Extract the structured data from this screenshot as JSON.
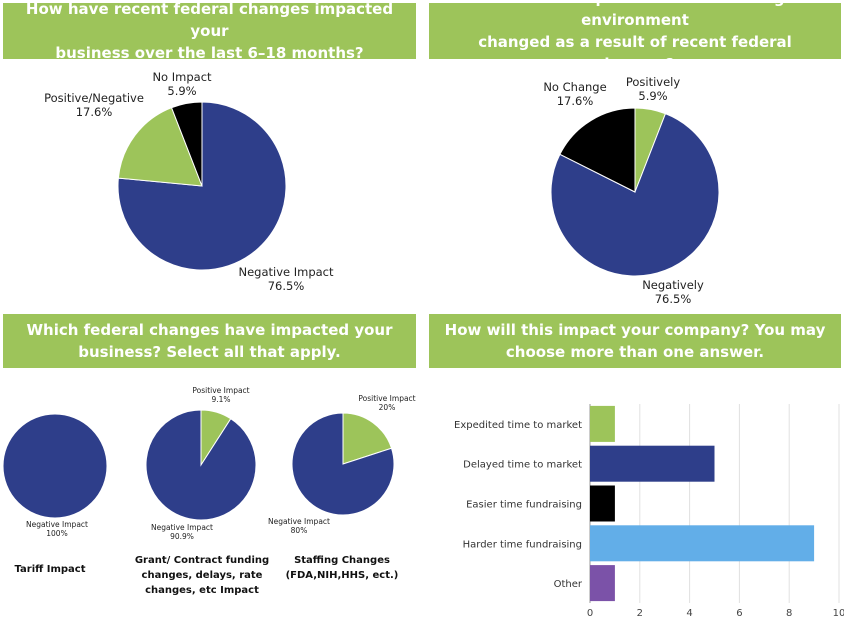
{
  "colors": {
    "banner_bg": "#9dc45a",
    "navy": "#2e3e8a",
    "green": "#9dc45a",
    "black": "#000000",
    "light_blue": "#62aee8",
    "purple": "#7b52a8"
  },
  "panels": {
    "top_left_title": [
      "How have recent federal changes impacted your",
      "business over the last 6–18 months?"
    ],
    "top_right_title": [
      "How has the private sector funding environment",
      "changed as a result of recent federal changes?"
    ],
    "bottom_left_title": [
      "Which federal changes have impacted your",
      "business? Select all that apply."
    ],
    "bottom_right_title": [
      "How will this impact your company? You may",
      "choose more than one answer."
    ]
  },
  "captions": {
    "tariff": [
      "Tariff Impact"
    ],
    "grant": [
      "Grant/ Contract funding",
      "changes, delays, rate",
      "changes, etc Impact"
    ],
    "staffing": [
      "Staffing Changes",
      "(FDA,NIH,HHS, ect.)"
    ]
  },
  "chart_data": [
    {
      "id": "business-impact",
      "type": "pie",
      "slices": [
        {
          "label": "Negative Impact",
          "value": 76.5,
          "display": "76.5%",
          "color": "#2e3e8a"
        },
        {
          "label": "Positive/Negative",
          "value": 17.6,
          "display": "17.6%",
          "color": "#9dc45a"
        },
        {
          "label": "No Impact",
          "value": 5.9,
          "display": "5.9%",
          "color": "#000000"
        }
      ]
    },
    {
      "id": "funding-environment",
      "type": "pie",
      "slices": [
        {
          "label": "Positively",
          "value": 5.9,
          "display": "5.9%",
          "color": "#9dc45a"
        },
        {
          "label": "Negatively",
          "value": 76.5,
          "display": "76.5%",
          "color": "#2e3e8a"
        },
        {
          "label": "No Change",
          "value": 17.6,
          "display": "17.6%",
          "color": "#000000"
        }
      ]
    },
    {
      "id": "tariff-impact",
      "type": "pie",
      "slices": [
        {
          "label": "Negative Impact",
          "value": 100,
          "display": "100%",
          "color": "#2e3e8a"
        }
      ]
    },
    {
      "id": "grant-impact",
      "type": "pie",
      "slices": [
        {
          "label": "Positive Impact",
          "value": 9.1,
          "display": "9.1%",
          "color": "#9dc45a"
        },
        {
          "label": "Negative Impact",
          "value": 90.9,
          "display": "90.9%",
          "color": "#2e3e8a"
        }
      ]
    },
    {
      "id": "staffing-impact",
      "type": "pie",
      "slices": [
        {
          "label": "Positive Impact",
          "value": 20,
          "display": "20%",
          "color": "#9dc45a"
        },
        {
          "label": "Negative Impact",
          "value": 80,
          "display": "80%",
          "color": "#2e3e8a"
        }
      ]
    },
    {
      "id": "company-impact",
      "type": "bar",
      "orientation": "horizontal",
      "categories": [
        "Expedited time to market",
        "Delayed time to market",
        "Easier time fundraising",
        "Harder time fundraising",
        "Other"
      ],
      "values": [
        1,
        5,
        1,
        9,
        1
      ],
      "colors": [
        "#9dc45a",
        "#2e3e8a",
        "#000000",
        "#62aee8",
        "#7b52a8"
      ],
      "xlim": [
        0,
        10
      ],
      "xticks": [
        0,
        2,
        4,
        6,
        8,
        10
      ],
      "grid": true
    }
  ]
}
